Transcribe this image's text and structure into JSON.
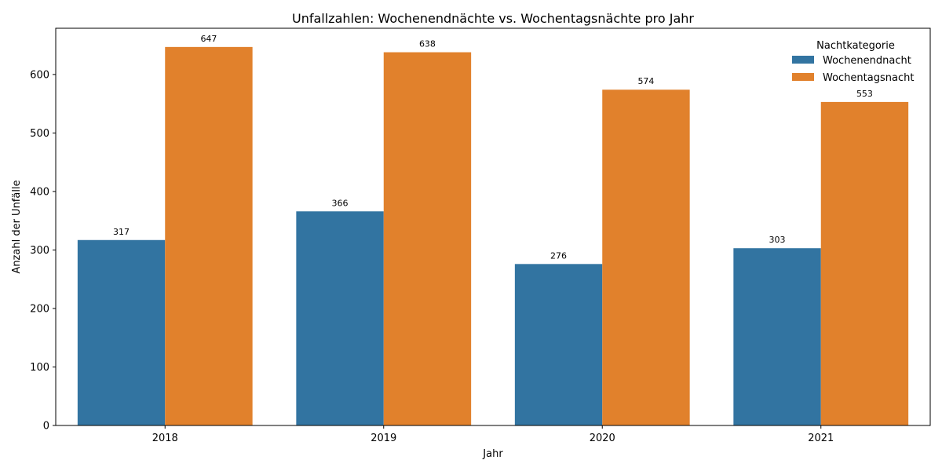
{
  "chart_data": {
    "type": "bar",
    "title": "Unfallzahlen: Wochenendnächte vs. Wochentagsnächte pro Jahr",
    "xlabel": "Jahr",
    "ylabel": "Anzahl der Unfälle",
    "categories": [
      "2018",
      "2019",
      "2020",
      "2021"
    ],
    "series": [
      {
        "name": "Wochenendnacht",
        "values": [
          317,
          366,
          276,
          303
        ],
        "color": "#3274a1"
      },
      {
        "name": "Wochentagsnacht",
        "values": [
          647,
          638,
          574,
          553
        ],
        "color": "#e1812c"
      }
    ],
    "ylim": [
      0,
      679
    ],
    "yticks": [
      0,
      100,
      200,
      300,
      400,
      500,
      600
    ],
    "legend": {
      "title": "Nachtkategorie",
      "placement": "top-right"
    },
    "grid": false
  }
}
